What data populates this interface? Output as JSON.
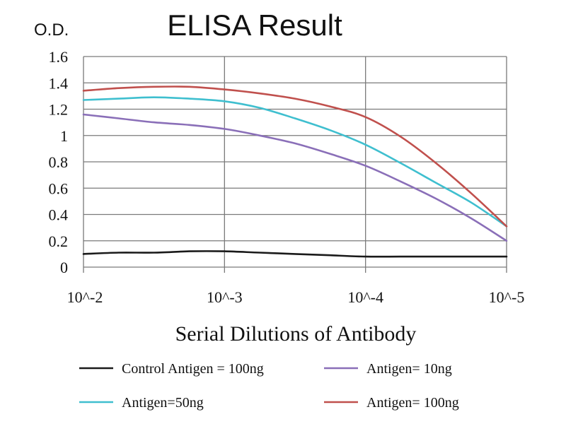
{
  "chart_data": {
    "type": "line",
    "title": "ELISA Result",
    "ylabel": "O.D.",
    "xlabel": "Serial Dilutions of Antibody",
    "categories": [
      "10^-2",
      "10^-3",
      "10^-4",
      "10^-5"
    ],
    "ylim": [
      0,
      1.6
    ],
    "yticks": [
      "0",
      "0.2",
      "0.4",
      "0.6",
      "0.8",
      "1",
      "1.2",
      "1.4",
      "1.6"
    ],
    "grid": true,
    "legend_position": "bottom",
    "x_values": [
      0,
      0.25,
      0.5,
      0.75,
      1,
      1.25,
      1.5,
      1.75,
      2,
      2.25,
      2.5,
      2.75,
      3
    ],
    "series": [
      {
        "name": "Control Antigen = 100ng",
        "color": "#1a1a1a",
        "values": [
          0.1,
          0.11,
          0.11,
          0.12,
          0.12,
          0.11,
          0.1,
          0.09,
          0.08,
          0.08,
          0.08,
          0.08,
          0.08
        ]
      },
      {
        "name": "Antigen= 10ng",
        "color": "#8a6fb8",
        "values": [
          1.16,
          1.13,
          1.1,
          1.08,
          1.05,
          1.0,
          0.94,
          0.86,
          0.77,
          0.65,
          0.52,
          0.37,
          0.2
        ]
      },
      {
        "name": "Antigen=50ng",
        "color": "#3fbfcf",
        "values": [
          1.27,
          1.28,
          1.29,
          1.28,
          1.26,
          1.21,
          1.13,
          1.04,
          0.93,
          0.79,
          0.64,
          0.49,
          0.31
        ]
      },
      {
        "name": "Antigen= 100ng",
        "color": "#c0504d",
        "values": [
          1.34,
          1.36,
          1.37,
          1.37,
          1.35,
          1.32,
          1.28,
          1.22,
          1.14,
          0.99,
          0.79,
          0.56,
          0.31
        ]
      }
    ]
  }
}
